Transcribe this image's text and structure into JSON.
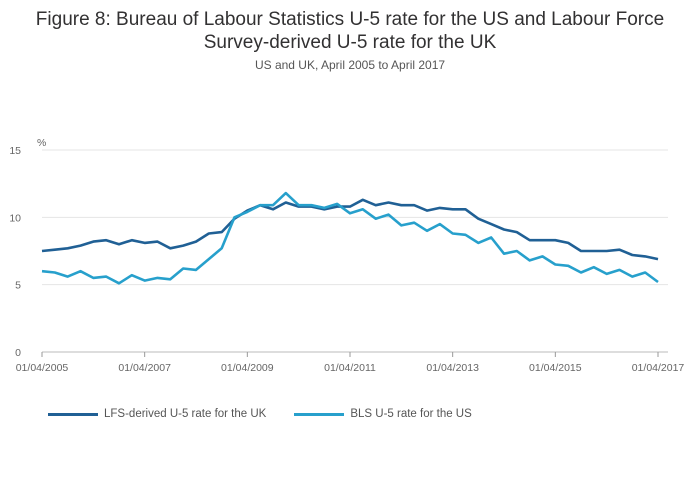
{
  "chart_data": {
    "type": "line",
    "title_line1": "Figure 8: Bureau of Labour Statistics U-5 rate for the US and Labour Force",
    "title_line2": "Survey-derived U-5 rate for the UK",
    "subtitle": "US and UK, April 2005 to April 2017",
    "ylabel": "%",
    "ylim": [
      0,
      15
    ],
    "yticks": [
      "0",
      "5",
      "10",
      "15"
    ],
    "ytick_values": [
      0,
      5,
      10,
      15
    ],
    "xticks": [
      "01/04/2005",
      "01/04/2007",
      "01/04/2009",
      "01/04/2011",
      "01/04/2013",
      "01/04/2015",
      "01/04/2017"
    ],
    "x_frequency": "quarterly",
    "grid": true,
    "legend_placement": "bottom-left",
    "series": [
      {
        "name": "LFS-derived U-5 rate for the UK",
        "color": "#206095",
        "values": [
          7.5,
          7.6,
          7.7,
          7.9,
          8.2,
          8.3,
          8.0,
          8.3,
          8.1,
          8.2,
          7.7,
          7.9,
          8.2,
          8.8,
          8.9,
          9.9,
          10.5,
          10.9,
          10.6,
          11.1,
          10.8,
          10.8,
          10.6,
          10.8,
          10.8,
          11.3,
          10.9,
          11.1,
          10.9,
          10.9,
          10.5,
          10.7,
          10.6,
          10.6,
          9.9,
          9.5,
          9.1,
          8.9,
          8.3,
          8.3,
          8.3,
          8.1,
          7.5,
          7.5,
          7.5,
          7.6,
          7.2,
          7.1,
          6.9
        ]
      },
      {
        "name": "BLS U-5 rate for the US",
        "color": "#27a0cc",
        "values": [
          6.0,
          5.9,
          5.6,
          6.0,
          5.5,
          5.6,
          5.1,
          5.7,
          5.3,
          5.5,
          5.4,
          6.2,
          6.1,
          6.9,
          7.7,
          10.0,
          10.4,
          10.9,
          10.9,
          11.8,
          10.9,
          10.9,
          10.7,
          11.0,
          10.3,
          10.6,
          9.9,
          10.2,
          9.4,
          9.6,
          9.0,
          9.5,
          8.8,
          8.7,
          8.1,
          8.5,
          7.3,
          7.5,
          6.8,
          7.1,
          6.5,
          6.4,
          5.9,
          6.3,
          5.8,
          6.1,
          5.6,
          5.9,
          5.2
        ]
      }
    ]
  }
}
